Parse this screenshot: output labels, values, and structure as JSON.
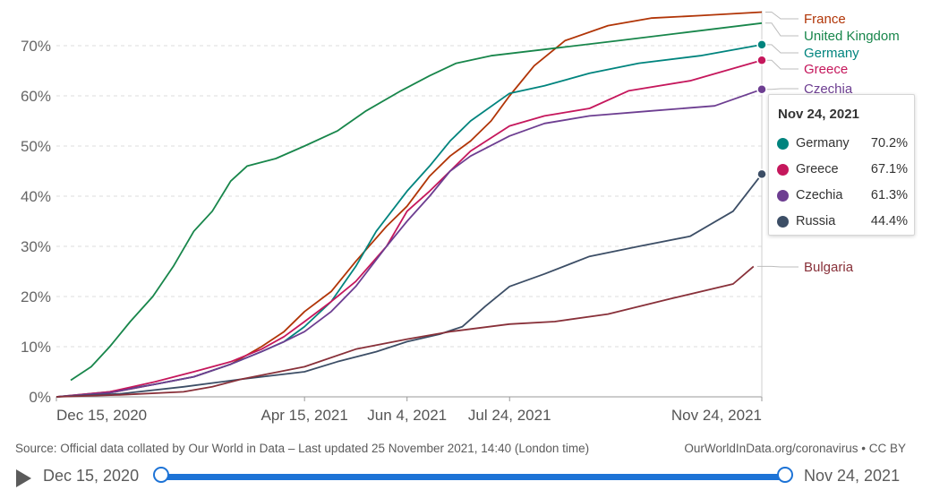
{
  "chart_data": {
    "type": "line",
    "ylim": [
      0,
      0.78
    ],
    "y_ticks": [
      {
        "value": 0,
        "label": "0%"
      },
      {
        "value": 0.1,
        "label": "10%"
      },
      {
        "value": 0.2,
        "label": "20%"
      },
      {
        "value": 0.3,
        "label": "30%"
      },
      {
        "value": 0.4,
        "label": "40%"
      },
      {
        "value": 0.5,
        "label": "50%"
      },
      {
        "value": 0.6,
        "label": "60%"
      },
      {
        "value": 0.7,
        "label": "70%"
      }
    ],
    "x_ticks": [
      {
        "date": "2020-12-15",
        "label": "Dec 15, 2020"
      },
      {
        "date": "2021-04-15",
        "label": "Apr 15, 2021"
      },
      {
        "date": "2021-06-04",
        "label": "Jun 4, 2021"
      },
      {
        "date": "2021-07-24",
        "label": "Jul 24, 2021"
      },
      {
        "date": "2021-11-24",
        "label": "Nov 24, 2021"
      }
    ],
    "grid": "horizontal dashed",
    "series": [
      {
        "name": "France",
        "color": "#b13507",
        "points": [
          [
            "2020-12-15",
            0
          ],
          [
            "2021-01-10",
            0.008
          ],
          [
            "2021-02-01",
            0.025
          ],
          [
            "2021-02-20",
            0.04
          ],
          [
            "2021-03-10",
            0.065
          ],
          [
            "2021-03-25",
            0.1
          ],
          [
            "2021-04-05",
            0.13
          ],
          [
            "2021-04-15",
            0.17
          ],
          [
            "2021-04-28",
            0.21
          ],
          [
            "2021-05-10",
            0.27
          ],
          [
            "2021-05-25",
            0.34
          ],
          [
            "2021-06-04",
            0.38
          ],
          [
            "2021-06-15",
            0.44
          ],
          [
            "2021-06-25",
            0.48
          ],
          [
            "2021-07-05",
            0.51
          ],
          [
            "2021-07-15",
            0.55
          ],
          [
            "2021-07-24",
            0.6
          ],
          [
            "2021-08-05",
            0.66
          ],
          [
            "2021-08-20",
            0.71
          ],
          [
            "2021-09-10",
            0.74
          ],
          [
            "2021-10-01",
            0.755
          ],
          [
            "2021-10-25",
            0.76
          ],
          [
            "2021-11-24",
            0.767
          ]
        ]
      },
      {
        "name": "United Kingdom",
        "color": "#18864b",
        "points": [
          [
            "2020-12-22",
            0.033
          ],
          [
            "2021-01-01",
            0.06
          ],
          [
            "2021-01-10",
            0.1
          ],
          [
            "2021-01-20",
            0.15
          ],
          [
            "2021-01-31",
            0.2
          ],
          [
            "2021-02-10",
            0.26
          ],
          [
            "2021-02-20",
            0.33
          ],
          [
            "2021-03-01",
            0.37
          ],
          [
            "2021-03-10",
            0.43
          ],
          [
            "2021-03-18",
            0.46
          ],
          [
            "2021-04-01",
            0.475
          ],
          [
            "2021-04-15",
            0.5
          ],
          [
            "2021-05-01",
            0.53
          ],
          [
            "2021-05-15",
            0.57
          ],
          [
            "2021-06-01",
            0.61
          ],
          [
            "2021-06-15",
            0.64
          ],
          [
            "2021-06-28",
            0.665
          ],
          [
            "2021-07-15",
            0.68
          ],
          [
            "2021-08-15",
            0.695
          ],
          [
            "2021-09-15",
            0.71
          ],
          [
            "2021-10-15",
            0.725
          ],
          [
            "2021-11-24",
            0.745
          ]
        ]
      },
      {
        "name": "Germany",
        "color": "#00847e",
        "points": [
          [
            "2020-12-15",
            0
          ],
          [
            "2021-01-10",
            0.01
          ],
          [
            "2021-02-01",
            0.025
          ],
          [
            "2021-02-20",
            0.04
          ],
          [
            "2021-03-10",
            0.065
          ],
          [
            "2021-03-25",
            0.09
          ],
          [
            "2021-04-05",
            0.11
          ],
          [
            "2021-04-15",
            0.14
          ],
          [
            "2021-04-28",
            0.19
          ],
          [
            "2021-05-10",
            0.26
          ],
          [
            "2021-05-20",
            0.33
          ],
          [
            "2021-06-04",
            0.41
          ],
          [
            "2021-06-15",
            0.46
          ],
          [
            "2021-06-25",
            0.51
          ],
          [
            "2021-07-05",
            0.55
          ],
          [
            "2021-07-24",
            0.605
          ],
          [
            "2021-08-10",
            0.62
          ],
          [
            "2021-09-01",
            0.645
          ],
          [
            "2021-09-25",
            0.665
          ],
          [
            "2021-10-25",
            0.68
          ],
          [
            "2021-11-24",
            0.702
          ]
        ]
      },
      {
        "name": "Greece",
        "color": "#c5175c",
        "points": [
          [
            "2020-12-15",
            0
          ],
          [
            "2021-01-10",
            0.01
          ],
          [
            "2021-02-01",
            0.03
          ],
          [
            "2021-02-20",
            0.05
          ],
          [
            "2021-03-10",
            0.07
          ],
          [
            "2021-03-25",
            0.095
          ],
          [
            "2021-04-05",
            0.12
          ],
          [
            "2021-04-15",
            0.15
          ],
          [
            "2021-04-28",
            0.19
          ],
          [
            "2021-05-10",
            0.23
          ],
          [
            "2021-05-25",
            0.3
          ],
          [
            "2021-06-04",
            0.37
          ],
          [
            "2021-06-15",
            0.41
          ],
          [
            "2021-06-25",
            0.45
          ],
          [
            "2021-07-05",
            0.49
          ],
          [
            "2021-07-24",
            0.54
          ],
          [
            "2021-08-10",
            0.56
          ],
          [
            "2021-09-01",
            0.575
          ],
          [
            "2021-09-20",
            0.61
          ],
          [
            "2021-10-20",
            0.63
          ],
          [
            "2021-11-24",
            0.671
          ]
        ]
      },
      {
        "name": "Czechia",
        "color": "#6d3e91",
        "points": [
          [
            "2020-12-15",
            0
          ],
          [
            "2021-01-10",
            0.008
          ],
          [
            "2021-02-01",
            0.025
          ],
          [
            "2021-02-20",
            0.04
          ],
          [
            "2021-03-10",
            0.065
          ],
          [
            "2021-03-25",
            0.09
          ],
          [
            "2021-04-05",
            0.11
          ],
          [
            "2021-04-15",
            0.13
          ],
          [
            "2021-04-28",
            0.17
          ],
          [
            "2021-05-10",
            0.22
          ],
          [
            "2021-05-25",
            0.3
          ],
          [
            "2021-06-04",
            0.35
          ],
          [
            "2021-06-15",
            0.4
          ],
          [
            "2021-06-25",
            0.45
          ],
          [
            "2021-07-05",
            0.48
          ],
          [
            "2021-07-24",
            0.52
          ],
          [
            "2021-08-10",
            0.545
          ],
          [
            "2021-09-01",
            0.56
          ],
          [
            "2021-10-01",
            0.57
          ],
          [
            "2021-11-01",
            0.58
          ],
          [
            "2021-11-24",
            0.613
          ]
        ]
      },
      {
        "name": "Russia",
        "color": "#3c4e66",
        "points": [
          [
            "2020-12-15",
            0
          ],
          [
            "2021-01-15",
            0.006
          ],
          [
            "2021-02-15",
            0.02
          ],
          [
            "2021-03-15",
            0.035
          ],
          [
            "2021-04-15",
            0.05
          ],
          [
            "2021-05-01",
            0.07
          ],
          [
            "2021-05-20",
            0.09
          ],
          [
            "2021-06-04",
            0.11
          ],
          [
            "2021-06-20",
            0.125
          ],
          [
            "2021-07-01",
            0.14
          ],
          [
            "2021-07-12",
            0.18
          ],
          [
            "2021-07-24",
            0.22
          ],
          [
            "2021-08-10",
            0.245
          ],
          [
            "2021-09-01",
            0.28
          ],
          [
            "2021-09-25",
            0.3
          ],
          [
            "2021-10-20",
            0.32
          ],
          [
            "2021-11-10",
            0.37
          ],
          [
            "2021-11-24",
            0.444
          ]
        ]
      },
      {
        "name": "Bulgaria",
        "color": "#883039",
        "points": [
          [
            "2020-12-15",
            0
          ],
          [
            "2021-01-15",
            0.004
          ],
          [
            "2021-02-15",
            0.01
          ],
          [
            "2021-03-01",
            0.02
          ],
          [
            "2021-03-15",
            0.035
          ],
          [
            "2021-04-15",
            0.06
          ],
          [
            "2021-05-10",
            0.095
          ],
          [
            "2021-06-04",
            0.115
          ],
          [
            "2021-06-25",
            0.13
          ],
          [
            "2021-07-24",
            0.145
          ],
          [
            "2021-08-15",
            0.15
          ],
          [
            "2021-09-10",
            0.165
          ],
          [
            "2021-10-10",
            0.195
          ],
          [
            "2021-11-10",
            0.225
          ],
          [
            "2021-11-20",
            0.26
          ]
        ]
      }
    ],
    "legend_placement": "right",
    "legend": [
      {
        "name": "France",
        "color": "#b13507",
        "value": 0.767
      },
      {
        "name": "United Kingdom",
        "color": "#18864b",
        "value": 0.745
      },
      {
        "name": "Germany",
        "color": "#00847e",
        "value": 0.702
      },
      {
        "name": "Greece",
        "color": "#c5175c",
        "value": 0.671
      },
      {
        "name": "Czechia",
        "color": "#6d3e91",
        "value": 0.613
      },
      {
        "name": "Bulgaria",
        "color": "#883039",
        "value": 0.26
      }
    ]
  },
  "tooltip": {
    "title": "Nov 24, 2021",
    "rows": [
      {
        "name": "Germany",
        "value": "70.2%",
        "color": "#00847e"
      },
      {
        "name": "Greece",
        "value": "67.1%",
        "color": "#c5175c"
      },
      {
        "name": "Czechia",
        "value": "61.3%",
        "color": "#6d3e91"
      },
      {
        "name": "Russia",
        "value": "44.4%",
        "color": "#3c4e66"
      }
    ]
  },
  "footer": {
    "source": "Source: Official data collated by Our World in Data – Last updated 25 November 2021, 14:40 (London time)",
    "credit": "OurWorldInData.org/coronavirus • CC BY"
  },
  "timeline": {
    "start_label": "Dec 15, 2020",
    "end_label": "Nov 24, 2021",
    "selected_start": 0,
    "selected_end": 1
  }
}
